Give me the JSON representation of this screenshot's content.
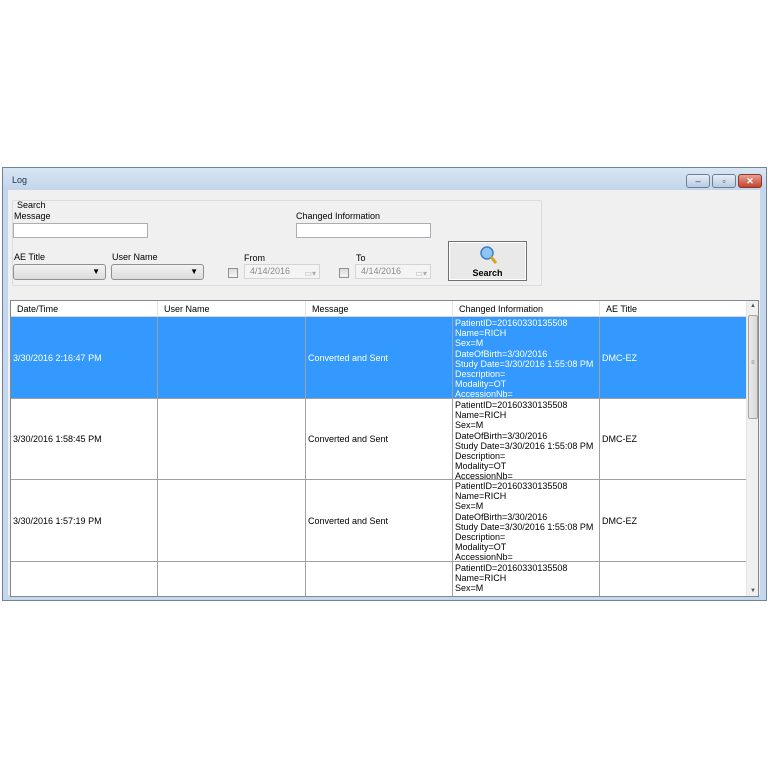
{
  "window": {
    "title": "Log",
    "minimize": "–",
    "maximize": "▫",
    "close": "✕"
  },
  "search": {
    "group_label": "Search",
    "message_label": "Message",
    "message_value": "",
    "changed_info_label": "Changed Information",
    "changed_info_value": "",
    "ae_title_label": "AE Title",
    "ae_title_value": "",
    "user_name_label": "User Name",
    "user_name_value": "",
    "from_label": "From",
    "from_value": "4/14/2016",
    "from_checked": false,
    "to_label": "To",
    "to_value": "4/14/2016",
    "to_checked": false,
    "button_label": "Search",
    "button_icon": "magnifier-icon"
  },
  "grid": {
    "columns": [
      "Date/Time",
      "User Name",
      "Message",
      "Changed Information",
      "AE Title"
    ],
    "rows": [
      {
        "datetime": "3/30/2016 2:16:47 PM",
        "user": "",
        "message": "Converted and Sent",
        "ae": "DMC-EZ",
        "selected": true,
        "info": [
          "PatientID=20160330135508",
          "Name=RICH",
          "Sex=M",
          "DateOfBirth=3/30/2016",
          "Study Date=3/30/2016 1:55:08 PM",
          "Description=",
          "Modality=OT",
          "AccessionNb="
        ]
      },
      {
        "datetime": "3/30/2016 1:58:45 PM",
        "user": "",
        "message": "Converted and Sent",
        "ae": "DMC-EZ",
        "selected": false,
        "info": [
          "PatientID=20160330135508",
          "Name=RICH",
          "Sex=M",
          "DateOfBirth=3/30/2016",
          "Study Date=3/30/2016 1:55:08 PM",
          "Description=",
          "Modality=OT",
          "AccessionNb="
        ]
      },
      {
        "datetime": "3/30/2016 1:57:19 PM",
        "user": "",
        "message": "Converted and Sent",
        "ae": "DMC-EZ",
        "selected": false,
        "info": [
          "PatientID=20160330135508",
          "Name=RICH",
          "Sex=M",
          "DateOfBirth=3/30/2016",
          "Study Date=3/30/2016 1:55:08 PM",
          "Description=",
          "Modality=OT",
          "AccessionNb="
        ]
      },
      {
        "datetime": "",
        "user": "",
        "message": "",
        "ae": "",
        "selected": false,
        "info": [
          "PatientID=20160330135508",
          "Name=RICH",
          "Sex=M"
        ]
      }
    ]
  },
  "colors": {
    "selection": "#3399ff",
    "titlebar": "#c4d7ed"
  }
}
